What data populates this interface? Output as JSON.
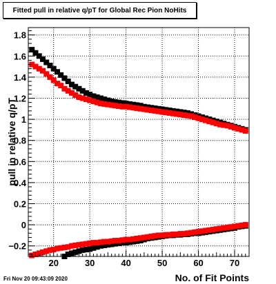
{
  "title": "Fitted pull in relative q/pT for Global Rec Pion NoHits",
  "datestamp": "Fri Nov 20 09:43:09 2020",
  "colors": {
    "series_black": "#000000",
    "series_red": "#ff0000",
    "axes": "#000000",
    "grid": "#000000"
  },
  "chart_data": {
    "type": "scatter",
    "title": "Fitted pull in relative q/pT for Global Rec Pion NoHits",
    "xlabel": "No. of Fit Points",
    "ylabel": "pull in relative q/pT",
    "xlim": [
      13,
      74
    ],
    "ylim": [
      -0.3,
      1.87
    ],
    "grid": true,
    "x_ticks": [
      20,
      30,
      40,
      50,
      60,
      70
    ],
    "y_ticks": [
      -0.2,
      0,
      0.2,
      0.4,
      0.6,
      0.8,
      1,
      1.2,
      1.4,
      1.6,
      1.8
    ],
    "y_tick_labels": [
      "−0.2",
      "0",
      "0.2",
      "0.4",
      "0.6",
      "0.8",
      "1",
      "1.2",
      "1.4",
      "1.6",
      "1.8"
    ],
    "series": [
      {
        "name": "",
        "color": "#000000",
        "marker": "square",
        "x": [
          14,
          15,
          16,
          17,
          18,
          19,
          20,
          21,
          22,
          23,
          24,
          25,
          26,
          27,
          28,
          29,
          30,
          31,
          32,
          33,
          34,
          35,
          36,
          37,
          38,
          39,
          40,
          41,
          42,
          43,
          44,
          45,
          46,
          47,
          48,
          49,
          50,
          51,
          52,
          53,
          54,
          55,
          56,
          57,
          58,
          59,
          60,
          61,
          62,
          63,
          64,
          65,
          66,
          67,
          68,
          69,
          70,
          71,
          72,
          73
        ],
        "y": [
          1.66,
          1.63,
          1.6,
          1.57,
          1.54,
          1.51,
          1.48,
          1.45,
          1.42,
          1.39,
          1.36,
          1.33,
          1.31,
          1.29,
          1.27,
          1.25,
          1.235,
          1.22,
          1.21,
          1.2,
          1.19,
          1.18,
          1.17,
          1.165,
          1.16,
          1.155,
          1.15,
          1.145,
          1.14,
          1.135,
          1.13,
          1.12,
          1.115,
          1.11,
          1.105,
          1.1,
          1.095,
          1.09,
          1.085,
          1.08,
          1.075,
          1.07,
          1.065,
          1.06,
          1.05,
          1.04,
          1.03,
          1.02,
          1.01,
          1.0,
          0.99,
          0.98,
          0.97,
          0.96,
          0.95,
          0.94,
          0.93,
          0.92,
          0.91,
          0.9
        ]
      },
      {
        "name": "",
        "color": "#ff0000",
        "marker": "square",
        "x": [
          14,
          15,
          16,
          17,
          18,
          19,
          20,
          21,
          22,
          23,
          24,
          25,
          26,
          27,
          28,
          29,
          30,
          31,
          32,
          33,
          34,
          35,
          36,
          37,
          38,
          39,
          40,
          41,
          42,
          43,
          44,
          45,
          46,
          47,
          48,
          49,
          50,
          51,
          52,
          53,
          54,
          55,
          56,
          57,
          58,
          59,
          60,
          61,
          62,
          63,
          64,
          65,
          66,
          67,
          68,
          69,
          70,
          71,
          72,
          73
        ],
        "y": [
          1.52,
          1.5,
          1.48,
          1.46,
          1.43,
          1.4,
          1.37,
          1.34,
          1.32,
          1.29,
          1.27,
          1.25,
          1.23,
          1.21,
          1.2,
          1.19,
          1.18,
          1.17,
          1.16,
          1.15,
          1.145,
          1.14,
          1.135,
          1.13,
          1.125,
          1.12,
          1.12,
          1.115,
          1.11,
          1.105,
          1.1,
          1.095,
          1.09,
          1.085,
          1.08,
          1.075,
          1.07,
          1.065,
          1.06,
          1.055,
          1.05,
          1.045,
          1.04,
          1.035,
          1.03,
          1.02,
          1.01,
          1.0,
          0.99,
          0.98,
          0.97,
          0.96,
          0.95,
          0.945,
          0.94,
          0.93,
          0.92,
          0.91,
          0.9,
          0.89
        ]
      },
      {
        "name": "",
        "color": "#000000",
        "marker": "square",
        "x": [
          21,
          22,
          23,
          24,
          25,
          26,
          27,
          28,
          29,
          30,
          31,
          32,
          33,
          34,
          35,
          36,
          37,
          38,
          39,
          40,
          41,
          42,
          43,
          44,
          45,
          46,
          47,
          48,
          49,
          50,
          51,
          52,
          53,
          54,
          55,
          56,
          57,
          58,
          59,
          60,
          61,
          62,
          63,
          64,
          65,
          66,
          67,
          68,
          69,
          70,
          71,
          72,
          73
        ],
        "y": [
          -0.34,
          -0.32,
          -0.3,
          -0.28,
          -0.27,
          -0.26,
          -0.25,
          -0.24,
          -0.235,
          -0.23,
          -0.22,
          -0.21,
          -0.2,
          -0.195,
          -0.19,
          -0.185,
          -0.18,
          -0.175,
          -0.17,
          -0.17,
          -0.165,
          -0.16,
          -0.155,
          -0.15,
          -0.14,
          -0.13,
          -0.125,
          -0.12,
          -0.115,
          -0.11,
          -0.105,
          -0.1,
          -0.1,
          -0.095,
          -0.095,
          -0.09,
          -0.09,
          -0.085,
          -0.08,
          -0.08,
          -0.075,
          -0.07,
          -0.065,
          -0.06,
          -0.055,
          -0.05,
          -0.045,
          -0.04,
          -0.035,
          -0.03,
          -0.02,
          -0.015,
          -0.01
        ]
      },
      {
        "name": "",
        "color": "#ff0000",
        "marker": "square",
        "x": [
          14,
          15,
          16,
          17,
          18,
          19,
          20,
          21,
          22,
          23,
          24,
          25,
          26,
          27,
          28,
          29,
          30,
          31,
          32,
          33,
          34,
          35,
          36,
          37,
          38,
          39,
          40,
          41,
          42,
          43,
          44,
          45,
          46,
          47,
          48,
          49,
          50,
          51,
          52,
          53,
          54,
          55,
          56,
          57,
          58,
          59,
          60,
          61,
          62,
          63,
          64,
          65,
          66,
          67,
          68,
          69,
          70,
          71,
          72,
          73
        ],
        "y": [
          -0.29,
          -0.28,
          -0.27,
          -0.26,
          -0.25,
          -0.24,
          -0.235,
          -0.225,
          -0.22,
          -0.215,
          -0.21,
          -0.2,
          -0.195,
          -0.19,
          -0.185,
          -0.18,
          -0.175,
          -0.17,
          -0.17,
          -0.165,
          -0.16,
          -0.16,
          -0.155,
          -0.15,
          -0.15,
          -0.145,
          -0.14,
          -0.14,
          -0.135,
          -0.13,
          -0.125,
          -0.12,
          -0.115,
          -0.11,
          -0.105,
          -0.1,
          -0.1,
          -0.095,
          -0.095,
          -0.09,
          -0.09,
          -0.085,
          -0.085,
          -0.08,
          -0.075,
          -0.07,
          -0.065,
          -0.06,
          -0.055,
          -0.05,
          -0.045,
          -0.04,
          -0.035,
          -0.03,
          -0.025,
          -0.02,
          -0.015,
          -0.01,
          -0.005,
          0.0
        ]
      }
    ]
  }
}
